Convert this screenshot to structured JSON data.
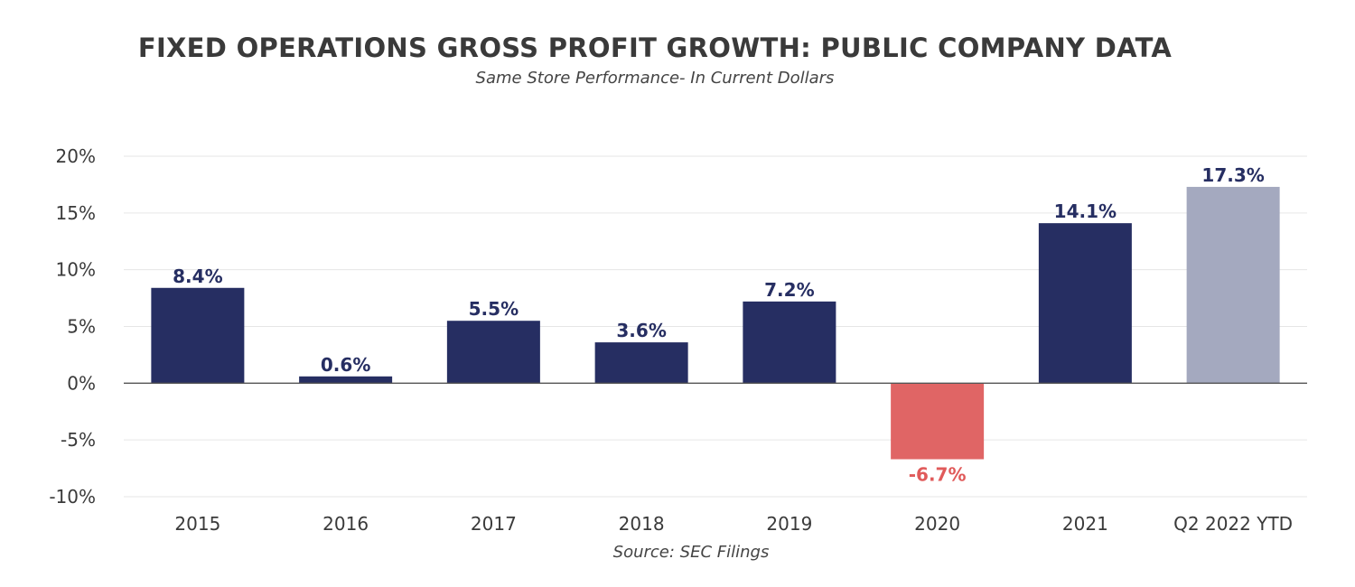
{
  "chart_data": {
    "type": "bar",
    "title": "FIXED OPERATIONS GROSS PROFIT GROWTH: PUBLIC COMPANY DATA",
    "subtitle": "Same Store Performance- In Current Dollars",
    "source": "Source: SEC Filings",
    "categories": [
      "2015",
      "2016",
      "2017",
      "2018",
      "2019",
      "2020",
      "2021",
      "Q2 2022 YTD"
    ],
    "values": [
      8.4,
      0.6,
      5.5,
      3.6,
      7.2,
      -6.7,
      14.1,
      17.3
    ],
    "data_labels": [
      "8.4%",
      "0.6%",
      "5.5%",
      "3.6%",
      "7.2%",
      "-6.7%",
      "14.1%",
      "17.3%"
    ],
    "y_ticks": [
      20,
      15,
      10,
      5,
      0,
      -5,
      -10
    ],
    "y_tick_labels": [
      "20%",
      "15%",
      "10%",
      "5%",
      "0%",
      "-5%",
      "-10%"
    ],
    "ylim": [
      -10,
      20
    ],
    "grid": true,
    "legend": "none",
    "colors": {
      "positive": "#262e62",
      "negative": "#e06565",
      "projected": "#a4a9bf",
      "positive_label": "#262e62",
      "negative_label": "#e05a5a",
      "grid": "#e6e6e6",
      "zero_line": "#555555"
    },
    "bar_styles": [
      "positive",
      "positive",
      "positive",
      "positive",
      "positive",
      "negative",
      "positive",
      "projected"
    ]
  }
}
